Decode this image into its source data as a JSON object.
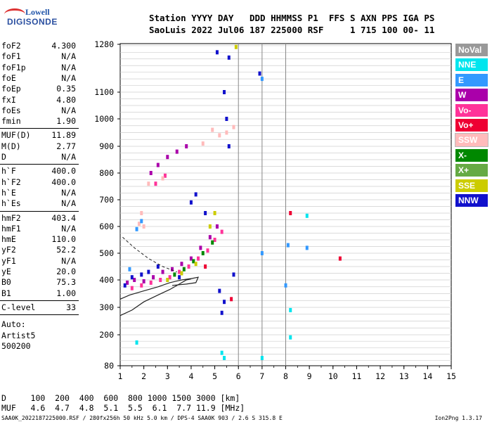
{
  "logo": {
    "line1": "Lowell",
    "line2": "DIGISONDE"
  },
  "header": {
    "line1": "Station YYYY DAY   DDD HHMMSS P1  FFS S AXN PPS IGA PS",
    "line2": "SaoLuis 2022 Jul06 187 225000 RSF     1 715 100 00- 11"
  },
  "params": [
    {
      "label": "foF2",
      "value": "4.300"
    },
    {
      "label": "foF1",
      "value": "N/A"
    },
    {
      "label": "foF1p",
      "value": "N/A"
    },
    {
      "label": "foE",
      "value": "N/A"
    },
    {
      "label": "foEp",
      "value": "0.35"
    },
    {
      "label": "fxI",
      "value": "4.80"
    },
    {
      "label": "foEs",
      "value": "N/A"
    },
    {
      "label": "fmin",
      "value": "1.90"
    },
    {
      "label": "MUF(D)",
      "value": "11.89"
    },
    {
      "label": "M(D)",
      "value": "2.77"
    },
    {
      "label": "D",
      "value": "N/A"
    },
    {
      "label": "h`F",
      "value": "400.0"
    },
    {
      "label": "h`F2",
      "value": "400.0"
    },
    {
      "label": "h`E",
      "value": "N/A"
    },
    {
      "label": "h`Es",
      "value": "N/A"
    },
    {
      "label": "hmF2",
      "value": "403.4"
    },
    {
      "label": "hmF1",
      "value": "N/A"
    },
    {
      "label": "hmE",
      "value": "110.0"
    },
    {
      "label": "yF2",
      "value": "52.2"
    },
    {
      "label": "yF1",
      "value": "N/A"
    },
    {
      "label": "yE",
      "value": "20.0"
    },
    {
      "label": "B0",
      "value": "75.3"
    },
    {
      "label": "B1",
      "value": "1.00"
    },
    {
      "label": "C-level",
      "value": "33"
    }
  ],
  "autoscaling": {
    "line1": "Auto:",
    "line2": "Artist5",
    "line3": "500200"
  },
  "legend": [
    {
      "label": "NoVal",
      "color": "#999999"
    },
    {
      "label": "NNE",
      "color": "#00e5ee"
    },
    {
      "label": "E",
      "color": "#3399ff"
    },
    {
      "label": "W",
      "color": "#aa00aa"
    },
    {
      "label": "Vo-",
      "color": "#ff3399"
    },
    {
      "label": "Vo+",
      "color": "#ee0033"
    },
    {
      "label": "SSW",
      "color": "#ffbbbb"
    },
    {
      "label": "X-",
      "color": "#008800"
    },
    {
      "label": "X+",
      "color": "#66aa44"
    },
    {
      "label": "SSE",
      "color": "#cccc00"
    },
    {
      "label": "NNW",
      "color": "#1111cc"
    }
  ],
  "bottom": {
    "d_row": "D     100  200  400  600  800 1000 1500 3000 [km]",
    "muf_row": "MUF   4.6  4.7  4.8  5.1  5.5  6.1  7.7 11.9 [MHz]"
  },
  "footer": "SAA0K_2022187225000.RSF / 280fx256h 50 kHz 5.0 km / DPS-4 SAA0K 903 / 2.6 S 315.8 E",
  "version": "Ion2Png 1.3.17",
  "chart_data": {
    "type": "scatter",
    "x_ticks": [
      1,
      2,
      3,
      4,
      5,
      6,
      7,
      8,
      9,
      10,
      11,
      12,
      13,
      14,
      15
    ],
    "y_ticks": [
      80,
      200,
      300,
      400,
      500,
      600,
      700,
      800,
      900,
      1000,
      1100,
      1280
    ],
    "xlim": [
      1,
      15
    ],
    "ylim": [
      80,
      1280
    ],
    "vertical_lines_x": [
      6,
      7,
      8
    ],
    "grid": true,
    "series": [
      {
        "color": "#aa00aa",
        "points": [
          [
            1.3,
            390
          ],
          [
            1.6,
            400
          ],
          [
            2.0,
            395
          ],
          [
            2.4,
            410
          ],
          [
            2.8,
            430
          ],
          [
            3.2,
            440
          ],
          [
            3.6,
            460
          ],
          [
            4.0,
            480
          ],
          [
            4.4,
            520
          ],
          [
            4.8,
            560
          ],
          [
            5.1,
            600
          ],
          [
            2.3,
            800
          ],
          [
            2.6,
            830
          ],
          [
            3.0,
            860
          ],
          [
            3.4,
            880
          ],
          [
            3.8,
            900
          ]
        ]
      },
      {
        "color": "#ff3399",
        "points": [
          [
            1.5,
            370
          ],
          [
            1.9,
            380
          ],
          [
            2.3,
            390
          ],
          [
            2.7,
            400
          ],
          [
            3.1,
            410
          ],
          [
            3.5,
            430
          ],
          [
            3.9,
            450
          ],
          [
            4.3,
            480
          ],
          [
            4.7,
            510
          ],
          [
            5.0,
            550
          ],
          [
            5.3,
            580
          ],
          [
            2.5,
            760
          ],
          [
            2.9,
            790
          ]
        ]
      },
      {
        "color": "#1111cc",
        "points": [
          [
            1.2,
            380
          ],
          [
            1.5,
            410
          ],
          [
            1.9,
            420
          ],
          [
            2.2,
            430
          ],
          [
            2.6,
            450
          ],
          [
            3.5,
            410
          ],
          [
            4.6,
            650
          ],
          [
            5.4,
            1100
          ],
          [
            5.5,
            1000
          ],
          [
            5.6,
            900
          ],
          [
            4.2,
            720
          ],
          [
            4.0,
            690
          ],
          [
            5.2,
            360
          ],
          [
            5.4,
            320
          ],
          [
            5.3,
            280
          ],
          [
            5.8,
            420
          ],
          [
            5.1,
            1250
          ],
          [
            5.6,
            1230
          ],
          [
            6.9,
            1170
          ]
        ]
      },
      {
        "color": "#008800",
        "points": [
          [
            3.3,
            420
          ],
          [
            3.7,
            440
          ],
          [
            4.1,
            470
          ],
          [
            4.5,
            500
          ],
          [
            4.9,
            540
          ]
        ]
      },
      {
        "color": "#cccc00",
        "points": [
          [
            3.0,
            400
          ],
          [
            3.6,
            425
          ],
          [
            4.2,
            460
          ],
          [
            4.8,
            600
          ],
          [
            5.0,
            650
          ],
          [
            5.9,
            1270
          ]
        ]
      },
      {
        "color": "#ffbbbb",
        "points": [
          [
            4.9,
            960
          ],
          [
            5.2,
            940
          ],
          [
            5.5,
            950
          ],
          [
            5.8,
            970
          ],
          [
            4.5,
            910
          ],
          [
            2.8,
            780
          ],
          [
            2.2,
            760
          ],
          [
            1.9,
            650
          ],
          [
            1.8,
            610
          ],
          [
            2.0,
            600
          ]
        ]
      },
      {
        "color": "#3399ff",
        "points": [
          [
            1.7,
            590
          ],
          [
            1.9,
            620
          ],
          [
            1.4,
            440
          ],
          [
            7.0,
            1150
          ],
          [
            7.0,
            500
          ],
          [
            8.0,
            380
          ],
          [
            8.9,
            520
          ],
          [
            8.1,
            530
          ]
        ]
      },
      {
        "color": "#00e5ee",
        "points": [
          [
            1.7,
            170
          ],
          [
            5.3,
            130
          ],
          [
            5.4,
            110
          ],
          [
            8.2,
            190
          ],
          [
            7.0,
            110
          ],
          [
            8.9,
            640
          ],
          [
            8.2,
            290
          ]
        ]
      },
      {
        "color": "#ee0033",
        "points": [
          [
            4.6,
            450
          ],
          [
            8.2,
            650
          ],
          [
            10.3,
            480
          ],
          [
            5.7,
            330
          ]
        ]
      }
    ]
  }
}
